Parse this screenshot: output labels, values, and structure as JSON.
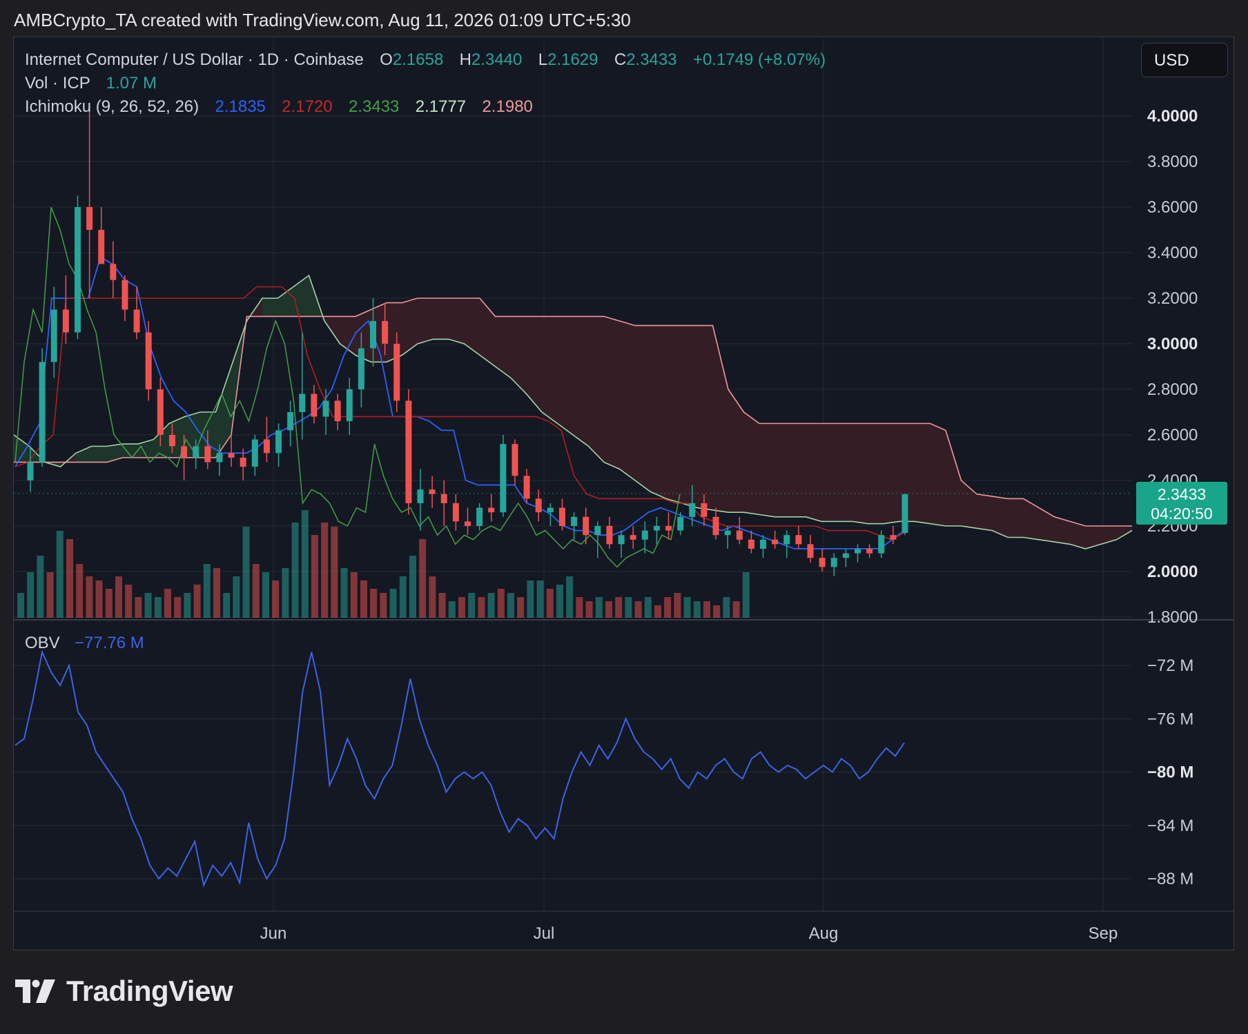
{
  "header": {
    "text": "AMBCrypto_TA created with TradingView.com, Aug 11, 2026 01:09 UTC+5:30"
  },
  "legend": {
    "title": "Internet Computer / US Dollar · 1D · Coinbase",
    "open_label": "O",
    "open": "2.1658",
    "high_label": "H",
    "high": "2.3440",
    "low_label": "L",
    "low": "2.1629",
    "close_label": "C",
    "close": "2.3433",
    "change": "+0.1749 (+8.07%)",
    "vol_label": "Vol · ICP",
    "vol": "1.07 M",
    "ichimoku_label": "Ichimoku (9, 26, 52, 26)",
    "ichimoku_values": [
      "2.1835",
      "2.1720",
      "2.3433",
      "2.1777",
      "2.1980"
    ]
  },
  "currency_button": "USD",
  "price_tag": {
    "price": "2.3433",
    "countdown": "04:20:50"
  },
  "obv": {
    "label": "OBV",
    "value": "−77.76 M"
  },
  "footer": {
    "brand": "TradingView"
  },
  "colors": {
    "up": "#26a69a",
    "down": "#ef5350",
    "tenkan": "#2962ff",
    "kijun": "#b71c1c",
    "chikou": "#43a047",
    "span_a": "#a5d6a7",
    "span_b": "#ef9a9a",
    "obv_line": "#3d63e6",
    "cloud_bear": "#3b1f27",
    "cloud_bull": "#1f3b2c"
  },
  "chart_data": [
    {
      "type": "candlestick",
      "title": "Internet Computer / US Dollar · 1D · Coinbase",
      "x_labels": [
        "Jun",
        "Jul",
        "Aug",
        "Sep"
      ],
      "y_ticks": [
        "4.0000",
        "3.8000",
        "3.6000",
        "3.4000",
        "3.2000",
        "3.0000",
        "2.8000",
        "2.6000",
        "2.4000",
        "2.2000",
        "2.0000",
        "1.8000"
      ],
      "y_bold_ticks": [
        "4.0000",
        "3.0000",
        "2.0000"
      ],
      "ylim": [
        1.8,
        4.1
      ],
      "last_close": 2.3433,
      "candles": [
        [
          2.4,
          2.55,
          2.35,
          2.48
        ],
        [
          2.48,
          2.98,
          2.46,
          2.92
        ],
        [
          2.92,
          3.25,
          2.85,
          3.15
        ],
        [
          3.15,
          3.3,
          3.0,
          3.05
        ],
        [
          3.05,
          3.65,
          3.02,
          3.6
        ],
        [
          3.6,
          4.05,
          3.2,
          3.5
        ],
        [
          3.5,
          3.6,
          3.35,
          3.35
        ],
        [
          3.35,
          3.45,
          3.2,
          3.28
        ],
        [
          3.28,
          3.3,
          3.1,
          3.15
        ],
        [
          3.15,
          3.25,
          3.02,
          3.05
        ],
        [
          3.05,
          3.1,
          2.75,
          2.8
        ],
        [
          2.8,
          2.85,
          2.55,
          2.6
        ],
        [
          2.6,
          2.65,
          2.52,
          2.55
        ],
        [
          2.55,
          2.6,
          2.4,
          2.5
        ],
        [
          2.5,
          2.58,
          2.45,
          2.55
        ],
        [
          2.55,
          2.62,
          2.45,
          2.48
        ],
        [
          2.48,
          2.56,
          2.42,
          2.52
        ],
        [
          2.52,
          2.6,
          2.46,
          2.5
        ],
        [
          2.5,
          2.54,
          2.4,
          2.46
        ],
        [
          2.46,
          2.6,
          2.42,
          2.58
        ],
        [
          2.58,
          2.68,
          2.48,
          2.52
        ],
        [
          2.52,
          2.65,
          2.46,
          2.62
        ],
        [
          2.62,
          2.75,
          2.55,
          2.7
        ],
        [
          2.7,
          3.05,
          2.58,
          2.78
        ],
        [
          2.78,
          2.82,
          2.65,
          2.68
        ],
        [
          2.68,
          2.8,
          2.6,
          2.75
        ],
        [
          2.75,
          2.78,
          2.62,
          2.66
        ],
        [
          2.66,
          2.85,
          2.6,
          2.8
        ],
        [
          2.8,
          3.05,
          2.72,
          2.98
        ],
        [
          2.98,
          3.2,
          2.9,
          3.1
        ],
        [
          3.1,
          3.18,
          2.95,
          3.0
        ],
        [
          3.0,
          3.05,
          2.7,
          2.75
        ],
        [
          2.75,
          2.8,
          2.25,
          2.3
        ],
        [
          2.3,
          2.45,
          2.18,
          2.36
        ],
        [
          2.36,
          2.42,
          2.28,
          2.34
        ],
        [
          2.34,
          2.4,
          2.2,
          2.3
        ],
        [
          2.3,
          2.34,
          2.18,
          2.22
        ],
        [
          2.22,
          2.28,
          2.16,
          2.2
        ],
        [
          2.2,
          2.3,
          2.18,
          2.28
        ],
        [
          2.28,
          2.34,
          2.22,
          2.26
        ],
        [
          2.26,
          2.6,
          2.24,
          2.56
        ],
        [
          2.56,
          2.58,
          2.38,
          2.42
        ],
        [
          2.42,
          2.45,
          2.3,
          2.32
        ],
        [
          2.32,
          2.36,
          2.22,
          2.26
        ],
        [
          2.26,
          2.3,
          2.2,
          2.28
        ],
        [
          2.28,
          2.32,
          2.18,
          2.2
        ],
        [
          2.2,
          2.26,
          2.14,
          2.24
        ],
        [
          2.24,
          2.28,
          2.12,
          2.16
        ],
        [
          2.16,
          2.22,
          2.06,
          2.2
        ],
        [
          2.2,
          2.24,
          2.1,
          2.12
        ],
        [
          2.12,
          2.18,
          2.06,
          2.16
        ],
        [
          2.16,
          2.2,
          2.1,
          2.14
        ],
        [
          2.14,
          2.22,
          2.08,
          2.18
        ],
        [
          2.18,
          2.24,
          2.12,
          2.2
        ],
        [
          2.2,
          2.26,
          2.14,
          2.18
        ],
        [
          2.18,
          2.26,
          2.16,
          2.24
        ],
        [
          2.24,
          2.38,
          2.2,
          2.3
        ],
        [
          2.3,
          2.34,
          2.2,
          2.24
        ],
        [
          2.24,
          2.28,
          2.14,
          2.16
        ],
        [
          2.16,
          2.2,
          2.1,
          2.18
        ],
        [
          2.18,
          2.24,
          2.12,
          2.14
        ],
        [
          2.14,
          2.18,
          2.08,
          2.1
        ],
        [
          2.1,
          2.16,
          2.06,
          2.14
        ],
        [
          2.14,
          2.18,
          2.1,
          2.12
        ],
        [
          2.12,
          2.18,
          2.06,
          2.16
        ],
        [
          2.16,
          2.2,
          2.1,
          2.12
        ],
        [
          2.12,
          2.16,
          2.04,
          2.06
        ],
        [
          2.06,
          2.1,
          2.0,
          2.02
        ],
        [
          2.02,
          2.08,
          1.98,
          2.06
        ],
        [
          2.06,
          2.1,
          2.02,
          2.08
        ],
        [
          2.08,
          2.12,
          2.04,
          2.1
        ],
        [
          2.1,
          2.12,
          2.06,
          2.08
        ],
        [
          2.08,
          2.18,
          2.06,
          2.16
        ],
        [
          2.16,
          2.2,
          2.12,
          2.14
        ],
        [
          2.17,
          2.34,
          2.16,
          2.34
        ]
      ],
      "volume": [
        [
          0.6,
          1
        ],
        [
          1.1,
          1
        ],
        [
          1.5,
          1
        ],
        [
          1.1,
          0
        ],
        [
          2.1,
          1
        ],
        [
          1.9,
          0
        ],
        [
          1.3,
          0
        ],
        [
          1.0,
          0
        ],
        [
          0.9,
          0
        ],
        [
          0.7,
          0
        ],
        [
          1.0,
          0
        ],
        [
          0.8,
          0
        ],
        [
          0.5,
          0
        ],
        [
          0.6,
          1
        ],
        [
          0.5,
          1
        ],
        [
          0.7,
          0
        ],
        [
          0.5,
          0
        ],
        [
          0.6,
          1
        ],
        [
          0.8,
          0
        ],
        [
          1.3,
          1
        ],
        [
          1.2,
          0
        ],
        [
          0.6,
          1
        ],
        [
          1.0,
          1
        ],
        [
          2.2,
          1
        ],
        [
          1.3,
          0
        ],
        [
          1.1,
          1
        ],
        [
          0.9,
          0
        ],
        [
          1.2,
          1
        ],
        [
          2.3,
          1
        ],
        [
          2.6,
          1
        ],
        [
          2.0,
          0
        ],
        [
          2.3,
          0
        ],
        [
          2.2,
          0
        ],
        [
          1.2,
          1
        ],
        [
          1.1,
          0
        ],
        [
          0.9,
          0
        ],
        [
          0.7,
          0
        ],
        [
          0.6,
          0
        ],
        [
          0.7,
          1
        ],
        [
          1.0,
          1
        ],
        [
          1.5,
          1
        ],
        [
          1.9,
          0
        ],
        [
          1.0,
          0
        ],
        [
          0.6,
          0
        ],
        [
          0.4,
          1
        ],
        [
          0.5,
          0
        ],
        [
          0.6,
          1
        ],
        [
          0.5,
          0
        ],
        [
          0.6,
          1
        ],
        [
          0.7,
          0
        ],
        [
          0.6,
          1
        ],
        [
          0.5,
          0
        ],
        [
          0.9,
          1
        ],
        [
          0.9,
          1
        ],
        [
          0.7,
          0
        ],
        [
          0.8,
          1
        ],
        [
          1.0,
          1
        ],
        [
          0.5,
          0
        ],
        [
          0.4,
          0
        ],
        [
          0.5,
          1
        ],
        [
          0.4,
          0
        ],
        [
          0.5,
          0
        ],
        [
          0.5,
          1
        ],
        [
          0.4,
          0
        ],
        [
          0.5,
          1
        ],
        [
          0.3,
          0
        ],
        [
          0.5,
          0
        ],
        [
          0.6,
          0
        ],
        [
          0.5,
          1
        ],
        [
          0.4,
          1
        ],
        [
          0.4,
          0
        ],
        [
          0.3,
          0
        ],
        [
          0.5,
          1
        ],
        [
          0.4,
          0
        ],
        [
          1.1,
          1
        ]
      ],
      "tenkan_sen": [
        2.46,
        2.55,
        2.65,
        3.2,
        3.2,
        3.2,
        3.2,
        3.38,
        3.35,
        3.28,
        3.25,
        3.0,
        2.85,
        2.75,
        2.7,
        2.62,
        2.55,
        2.52,
        2.52,
        2.52,
        2.55,
        2.6,
        2.62,
        2.65,
        2.68,
        2.72,
        2.8,
        2.95,
        3.05,
        3.1,
        2.95,
        2.68,
        2.68,
        2.68,
        2.66,
        2.62,
        2.62,
        2.4,
        2.38,
        2.38,
        2.38,
        2.38,
        2.3,
        2.28,
        2.25,
        2.2,
        2.18,
        2.18,
        2.16,
        2.16,
        2.18,
        2.22,
        2.26,
        2.28,
        2.26,
        2.24,
        2.22,
        2.2,
        2.18,
        2.2,
        2.18,
        2.16,
        2.14,
        2.12,
        2.1,
        2.1,
        2.1,
        2.1,
        2.1,
        2.1,
        2.1,
        2.1,
        2.14,
        2.18
      ],
      "kijun_sen": [
        2.46,
        2.48,
        2.55,
        2.6,
        3.2,
        3.2,
        3.2,
        3.2,
        3.2,
        3.2,
        3.2,
        3.2,
        3.2,
        3.2,
        3.2,
        3.2,
        3.2,
        3.2,
        3.2,
        3.25,
        3.25,
        3.25,
        3.2,
        2.95,
        2.8,
        2.68,
        2.68,
        2.68,
        2.68,
        2.68,
        2.68,
        2.68,
        2.68,
        2.68,
        2.68,
        2.68,
        2.68,
        2.68,
        2.68,
        2.68,
        2.68,
        2.68,
        2.66,
        2.62,
        2.42,
        2.34,
        2.32,
        2.32,
        2.32,
        2.32,
        2.32,
        2.32,
        2.3,
        2.3,
        2.24,
        2.22,
        2.2,
        2.2,
        2.2,
        2.2,
        2.2,
        2.2,
        2.2,
        2.2,
        2.18,
        2.18,
        2.18,
        2.18,
        2.16,
        2.14,
        2.17
      ],
      "chikou_span": [
        2.48,
        2.92,
        3.15,
        3.05,
        3.6,
        3.5,
        3.35,
        3.28,
        3.15,
        3.05,
        2.8,
        2.6,
        2.55,
        2.5,
        2.55,
        2.48,
        2.52,
        2.5,
        2.46,
        2.58,
        2.52,
        2.62,
        2.7,
        2.78,
        2.68,
        2.75,
        2.66,
        2.8,
        2.98,
        3.1,
        3.0,
        2.75,
        2.3,
        2.36,
        2.34,
        2.3,
        2.22,
        2.2,
        2.28,
        2.26,
        2.56,
        2.42,
        2.32,
        2.26,
        2.28,
        2.2,
        2.24,
        2.16,
        2.2,
        2.12,
        2.16,
        2.14,
        2.18,
        2.2,
        2.18,
        2.24,
        2.3,
        2.24,
        2.16,
        2.18,
        2.14,
        2.1,
        2.14,
        2.12,
        2.16,
        2.12,
        2.06,
        2.02,
        2.06,
        2.08,
        2.1,
        2.08,
        2.16,
        2.14,
        2.34
      ],
      "senkou_span_a": [
        2.6,
        2.55,
        2.48,
        2.46,
        2.52,
        2.55,
        2.55,
        2.56,
        2.56,
        2.58,
        2.65,
        2.68,
        2.7,
        2.7,
        2.9,
        3.1,
        3.2,
        3.2,
        3.25,
        3.3,
        3.1,
        3.0,
        2.95,
        2.92,
        2.92,
        2.95,
        3.0,
        3.02,
        3.02,
        3.0,
        2.95,
        2.9,
        2.85,
        2.78,
        2.7,
        2.65,
        2.6,
        2.55,
        2.48,
        2.45,
        2.4,
        2.35,
        2.32,
        2.3,
        2.28,
        2.27,
        2.26,
        2.26,
        2.25,
        2.24,
        2.24,
        2.24,
        2.22,
        2.22,
        2.22,
        2.21,
        2.21,
        2.22,
        2.22,
        2.21,
        2.2,
        2.2,
        2.19,
        2.18,
        2.15,
        2.15,
        2.14,
        2.13,
        2.12,
        2.1,
        2.12,
        2.14,
        2.18
      ],
      "senkou_span_b": [
        2.48,
        2.48,
        2.48,
        2.48,
        2.48,
        2.48,
        2.48,
        2.5,
        2.5,
        2.5,
        2.5,
        2.5,
        2.5,
        2.5,
        2.6,
        3.12,
        3.12,
        3.12,
        3.12,
        3.12,
        3.12,
        3.12,
        3.12,
        3.15,
        3.18,
        3.18,
        3.2,
        3.2,
        3.2,
        3.2,
        3.2,
        3.12,
        3.12,
        3.12,
        3.12,
        3.12,
        3.12,
        3.12,
        3.12,
        3.1,
        3.08,
        3.08,
        3.08,
        3.08,
        3.08,
        3.08,
        2.8,
        2.7,
        2.65,
        2.65,
        2.65,
        2.65,
        2.65,
        2.65,
        2.65,
        2.65,
        2.65,
        2.65,
        2.65,
        2.65,
        2.62,
        2.4,
        2.34,
        2.33,
        2.32,
        2.32,
        2.28,
        2.24,
        2.22,
        2.2,
        2.2,
        2.2,
        2.2
      ]
    },
    {
      "type": "line",
      "name": "OBV",
      "ylim": [
        -90,
        -70
      ],
      "y_ticks": [
        "−72 M",
        "−76 M",
        "−80 M",
        "−84 M",
        "−88 M"
      ],
      "y_bold_ticks": [
        "−80 M"
      ],
      "values": [
        -78,
        -77.5,
        -74.5,
        -71,
        -72.5,
        -73.5,
        -72,
        -75.5,
        -76.5,
        -78.5,
        -79.5,
        -80.5,
        -81.5,
        -83.5,
        -85,
        -87,
        -88,
        -87.2,
        -87.8,
        -86.5,
        -85.2,
        -88.5,
        -87,
        -87.8,
        -86.8,
        -88.3,
        -83.8,
        -86.5,
        -88,
        -87,
        -85,
        -80,
        -74,
        -71,
        -74,
        -81,
        -79.5,
        -77.5,
        -79,
        -81,
        -82,
        -80.5,
        -79.5,
        -76.5,
        -73,
        -76,
        -78,
        -79.5,
        -81.5,
        -80.5,
        -80,
        -80.5,
        -80,
        -81,
        -83,
        -84.5,
        -83.5,
        -84,
        -85,
        -84.2,
        -85,
        -82,
        -80,
        -78.5,
        -79.5,
        -78,
        -79,
        -77.8,
        -76,
        -77.5,
        -78.5,
        -79,
        -79.8,
        -79,
        -80.5,
        -81.2,
        -80,
        -80.5,
        -79.5,
        -79,
        -80,
        -80.5,
        -79,
        -78.5,
        -79.5,
        -80,
        -79.5,
        -79.8,
        -80.5,
        -80,
        -79.5,
        -80,
        -79,
        -79.5,
        -80.5,
        -80,
        -79,
        -78.2,
        -78.8,
        -77.8
      ]
    }
  ]
}
